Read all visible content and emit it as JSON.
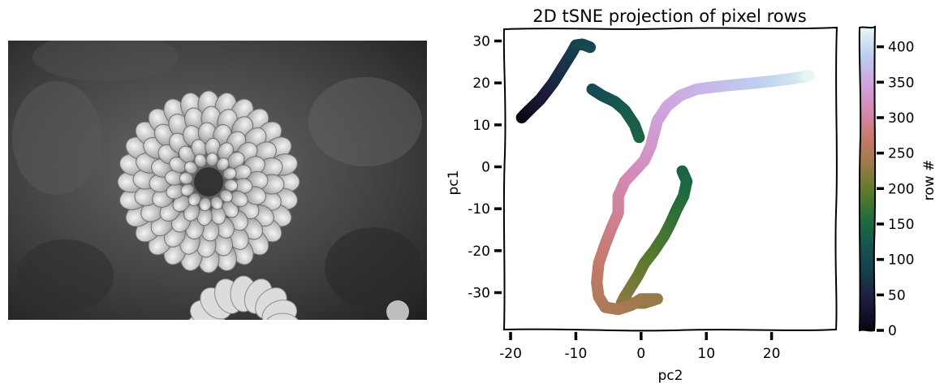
{
  "left_panel": {
    "image_subject": "dahlia-flower-grayscale-photo"
  },
  "chart_data": {
    "type": "scatter",
    "title": "2D tSNE projection of pixel rows",
    "xlabel": "pc2",
    "ylabel": "pc1",
    "xlim": [
      -21,
      30
    ],
    "ylim": [
      -39,
      33
    ],
    "xticks": [
      -20,
      -10,
      0,
      10,
      20
    ],
    "xtick_labels": [
      "-20",
      "-10",
      "0",
      "10",
      "20"
    ],
    "yticks": [
      -30,
      -20,
      -10,
      0,
      10,
      20,
      30
    ],
    "ytick_labels": [
      "-30",
      "-20",
      "-10",
      "0",
      "10",
      "20",
      "30"
    ],
    "grid": false,
    "style": "xkcd-hand-drawn",
    "colorbar": {
      "label": "row #",
      "range": [
        0,
        427
      ],
      "ticks": [
        0,
        50,
        100,
        150,
        200,
        250,
        300,
        350,
        400
      ],
      "tick_labels": [
        "0",
        "50",
        "100",
        "150",
        "200",
        "250",
        "300",
        "350",
        "400"
      ],
      "colormap": "cubehelix-cool",
      "stops": [
        "#070610",
        "#1c1a3c",
        "#183a4c",
        "#165252",
        "#1f6b3f",
        "#5a7a2c",
        "#987a4a",
        "#c6796b",
        "#d489b4",
        "#cfa6e1",
        "#bccff0",
        "#e6f7f3"
      ]
    },
    "series": [
      {
        "trajectory": [
          {
            "row": 0,
            "x": -18.3,
            "y": 11.7
          },
          {
            "row": 10,
            "x": -17.5,
            "y": 13.0
          },
          {
            "row": 20,
            "x": -16.5,
            "y": 14.5
          },
          {
            "row": 30,
            "x": -15.5,
            "y": 16.0
          },
          {
            "row": 40,
            "x": -14.5,
            "y": 18.0
          },
          {
            "row": 50,
            "x": -13.5,
            "y": 20.0
          },
          {
            "row": 60,
            "x": -12.5,
            "y": 22.5
          },
          {
            "row": 70,
            "x": -11.5,
            "y": 25.0
          },
          {
            "row": 80,
            "x": -10.5,
            "y": 27.5
          },
          {
            "row": 90,
            "x": -10.0,
            "y": 29.0
          },
          {
            "row": 95,
            "x": -9.0,
            "y": 29.2
          },
          {
            "row": 100,
            "x": -7.8,
            "y": 28.5
          },
          {
            "row": 102,
            "x": -7.5,
            "y": 18.5
          },
          {
            "row": 110,
            "x": -6.0,
            "y": 17.0
          },
          {
            "row": 120,
            "x": -4.0,
            "y": 15.5
          },
          {
            "row": 128,
            "x": -2.5,
            "y": 13.5
          },
          {
            "row": 135,
            "x": -1.0,
            "y": 10.0
          },
          {
            "row": 140,
            "x": -0.3,
            "y": 7.0
          },
          {
            "row": 142,
            "x": 6.3,
            "y": -1.0
          },
          {
            "row": 148,
            "x": 7.0,
            "y": -3.5
          },
          {
            "row": 155,
            "x": 6.5,
            "y": -7.0
          },
          {
            "row": 162,
            "x": 5.5,
            "y": -10.0
          },
          {
            "row": 170,
            "x": 4.5,
            "y": -13.5
          },
          {
            "row": 178,
            "x": 3.5,
            "y": -16.5
          },
          {
            "row": 186,
            "x": 2.0,
            "y": -20.0
          },
          {
            "row": 195,
            "x": 0.5,
            "y": -23.0
          },
          {
            "row": 203,
            "x": -0.5,
            "y": -26.0
          },
          {
            "row": 211,
            "x": -1.5,
            "y": -28.5
          },
          {
            "row": 218,
            "x": -2.5,
            "y": -31.0
          },
          {
            "row": 223,
            "x": -3.0,
            "y": -32.5
          },
          {
            "row": 228,
            "x": 0.5,
            "y": -32.5
          },
          {
            "row": 232,
            "x": 2.5,
            "y": -31.5
          },
          {
            "row": 236,
            "x": 0.0,
            "y": -31.5
          },
          {
            "row": 240,
            "x": -1.5,
            "y": -33.0
          },
          {
            "row": 245,
            "x": -3.5,
            "y": -34.0
          },
          {
            "row": 250,
            "x": -5.5,
            "y": -33.5
          },
          {
            "row": 255,
            "x": -6.5,
            "y": -31.0
          },
          {
            "row": 262,
            "x": -6.8,
            "y": -27.5
          },
          {
            "row": 270,
            "x": -6.5,
            "y": -23.0
          },
          {
            "row": 278,
            "x": -5.5,
            "y": -18.5
          },
          {
            "row": 286,
            "x": -4.5,
            "y": -14.5
          },
          {
            "row": 293,
            "x": -3.5,
            "y": -11.0
          },
          {
            "row": 300,
            "x": -3.5,
            "y": -7.0
          },
          {
            "row": 307,
            "x": -2.5,
            "y": -3.5
          },
          {
            "row": 313,
            "x": -1.0,
            "y": -1.0
          },
          {
            "row": 320,
            "x": 0.5,
            "y": 1.5
          },
          {
            "row": 327,
            "x": 1.5,
            "y": 5.0
          },
          {
            "row": 333,
            "x": 2.0,
            "y": 8.0
          },
          {
            "row": 340,
            "x": 2.5,
            "y": 11.0
          },
          {
            "row": 347,
            "x": 4.0,
            "y": 14.5
          },
          {
            "row": 354,
            "x": 6.0,
            "y": 17.0
          },
          {
            "row": 360,
            "x": 8.5,
            "y": 18.5
          },
          {
            "row": 367,
            "x": 11.0,
            "y": 19.0
          },
          {
            "row": 375,
            "x": 14.0,
            "y": 19.5
          },
          {
            "row": 385,
            "x": 17.5,
            "y": 20.0
          },
          {
            "row": 395,
            "x": 20.5,
            "y": 20.5
          },
          {
            "row": 405,
            "x": 23.0,
            "y": 21.0
          },
          {
            "row": 415,
            "x": 25.0,
            "y": 21.5
          },
          {
            "row": 427,
            "x": 25.7,
            "y": 21.7
          }
        ]
      }
    ]
  }
}
